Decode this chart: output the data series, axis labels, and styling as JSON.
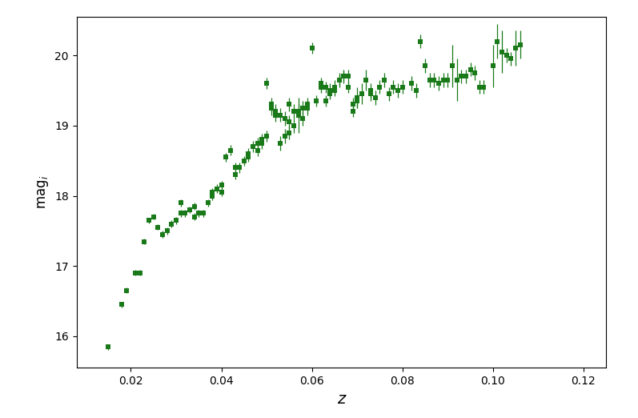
{
  "title": "",
  "xlabel": "z",
  "ylabel": "mag$_i$",
  "color": "#1a7a1a",
  "marker": "s",
  "markersize": 4.5,
  "xlim": [
    0.008,
    0.125
  ],
  "ylim": [
    15.55,
    20.55
  ],
  "xticks": [
    0.02,
    0.04,
    0.06,
    0.08,
    0.1,
    0.12
  ],
  "yticks": [
    16,
    17,
    18,
    19,
    20
  ],
  "points": [
    [
      0.015,
      15.85,
      0.04
    ],
    [
      0.018,
      16.45,
      0.04
    ],
    [
      0.019,
      16.65,
      0.04
    ],
    [
      0.021,
      16.9,
      0.04
    ],
    [
      0.022,
      16.9,
      0.04
    ],
    [
      0.023,
      17.35,
      0.04
    ],
    [
      0.024,
      17.65,
      0.04
    ],
    [
      0.025,
      17.7,
      0.04
    ],
    [
      0.026,
      17.55,
      0.04
    ],
    [
      0.027,
      17.45,
      0.05
    ],
    [
      0.028,
      17.5,
      0.05
    ],
    [
      0.029,
      17.6,
      0.05
    ],
    [
      0.03,
      17.65,
      0.05
    ],
    [
      0.031,
      17.75,
      0.05
    ],
    [
      0.031,
      17.9,
      0.05
    ],
    [
      0.032,
      17.75,
      0.05
    ],
    [
      0.033,
      17.8,
      0.05
    ],
    [
      0.034,
      17.85,
      0.05
    ],
    [
      0.034,
      17.7,
      0.05
    ],
    [
      0.035,
      17.75,
      0.05
    ],
    [
      0.036,
      17.75,
      0.05
    ],
    [
      0.037,
      17.9,
      0.05
    ],
    [
      0.038,
      18.0,
      0.06
    ],
    [
      0.038,
      18.05,
      0.06
    ],
    [
      0.039,
      18.1,
      0.06
    ],
    [
      0.04,
      18.05,
      0.06
    ],
    [
      0.04,
      18.15,
      0.06
    ],
    [
      0.041,
      18.55,
      0.06
    ],
    [
      0.042,
      18.65,
      0.07
    ],
    [
      0.043,
      18.3,
      0.07
    ],
    [
      0.043,
      18.4,
      0.07
    ],
    [
      0.044,
      18.4,
      0.07
    ],
    [
      0.045,
      18.5,
      0.07
    ],
    [
      0.046,
      18.55,
      0.07
    ],
    [
      0.046,
      18.6,
      0.08
    ],
    [
      0.047,
      18.7,
      0.08
    ],
    [
      0.048,
      18.75,
      0.08
    ],
    [
      0.048,
      18.65,
      0.08
    ],
    [
      0.049,
      18.75,
      0.08
    ],
    [
      0.049,
      18.8,
      0.08
    ],
    [
      0.05,
      18.85,
      0.08
    ],
    [
      0.05,
      19.6,
      0.08
    ],
    [
      0.051,
      19.25,
      0.1
    ],
    [
      0.051,
      19.3,
      0.1
    ],
    [
      0.052,
      19.15,
      0.1
    ],
    [
      0.052,
      19.2,
      0.1
    ],
    [
      0.053,
      18.75,
      0.1
    ],
    [
      0.053,
      19.15,
      0.1
    ],
    [
      0.054,
      19.1,
      0.1
    ],
    [
      0.054,
      18.85,
      0.1
    ],
    [
      0.055,
      19.05,
      0.1
    ],
    [
      0.055,
      18.9,
      0.1
    ],
    [
      0.055,
      19.3,
      0.1
    ],
    [
      0.056,
      19.2,
      0.1
    ],
    [
      0.056,
      19.0,
      0.1
    ],
    [
      0.057,
      19.15,
      0.25
    ],
    [
      0.057,
      19.2,
      0.1
    ],
    [
      0.058,
      19.1,
      0.1
    ],
    [
      0.058,
      19.25,
      0.1
    ],
    [
      0.059,
      19.25,
      0.1
    ],
    [
      0.059,
      19.3,
      0.1
    ],
    [
      0.06,
      20.1,
      0.08
    ],
    [
      0.061,
      19.35,
      0.08
    ],
    [
      0.062,
      19.55,
      0.08
    ],
    [
      0.062,
      19.6,
      0.08
    ],
    [
      0.063,
      19.55,
      0.08
    ],
    [
      0.063,
      19.35,
      0.08
    ],
    [
      0.064,
      19.5,
      0.1
    ],
    [
      0.064,
      19.45,
      0.08
    ],
    [
      0.065,
      19.55,
      0.1
    ],
    [
      0.065,
      19.5,
      0.08
    ],
    [
      0.066,
      19.65,
      0.1
    ],
    [
      0.066,
      19.65,
      0.08
    ],
    [
      0.067,
      19.7,
      0.1
    ],
    [
      0.067,
      19.7,
      0.08
    ],
    [
      0.068,
      19.7,
      0.1
    ],
    [
      0.068,
      19.55,
      0.08
    ],
    [
      0.069,
      19.3,
      0.1
    ],
    [
      0.069,
      19.2,
      0.08
    ],
    [
      0.07,
      19.4,
      0.15
    ],
    [
      0.07,
      19.35,
      0.1
    ],
    [
      0.071,
      19.45,
      0.15
    ],
    [
      0.072,
      19.65,
      0.15
    ],
    [
      0.073,
      19.45,
      0.1
    ],
    [
      0.073,
      19.5,
      0.1
    ],
    [
      0.074,
      19.4,
      0.1
    ],
    [
      0.075,
      19.55,
      0.1
    ],
    [
      0.076,
      19.65,
      0.1
    ],
    [
      0.077,
      19.45,
      0.1
    ],
    [
      0.078,
      19.55,
      0.1
    ],
    [
      0.079,
      19.5,
      0.1
    ],
    [
      0.08,
      19.55,
      0.1
    ],
    [
      0.082,
      19.6,
      0.1
    ],
    [
      0.083,
      19.5,
      0.1
    ],
    [
      0.084,
      20.2,
      0.1
    ],
    [
      0.085,
      19.85,
      0.1
    ],
    [
      0.086,
      19.65,
      0.1
    ],
    [
      0.087,
      19.65,
      0.1
    ],
    [
      0.088,
      19.6,
      0.1
    ],
    [
      0.089,
      19.65,
      0.1
    ],
    [
      0.09,
      19.65,
      0.1
    ],
    [
      0.091,
      19.85,
      0.3
    ],
    [
      0.092,
      19.65,
      0.3
    ],
    [
      0.093,
      19.7,
      0.1
    ],
    [
      0.094,
      19.7,
      0.1
    ],
    [
      0.095,
      19.8,
      0.1
    ],
    [
      0.096,
      19.75,
      0.1
    ],
    [
      0.097,
      19.55,
      0.1
    ],
    [
      0.098,
      19.55,
      0.1
    ],
    [
      0.1,
      19.85,
      0.3
    ],
    [
      0.101,
      20.2,
      0.25
    ],
    [
      0.102,
      20.05,
      0.3
    ],
    [
      0.103,
      20.0,
      0.1
    ],
    [
      0.104,
      19.95,
      0.1
    ],
    [
      0.105,
      20.1,
      0.25
    ],
    [
      0.106,
      20.15,
      0.2
    ]
  ]
}
